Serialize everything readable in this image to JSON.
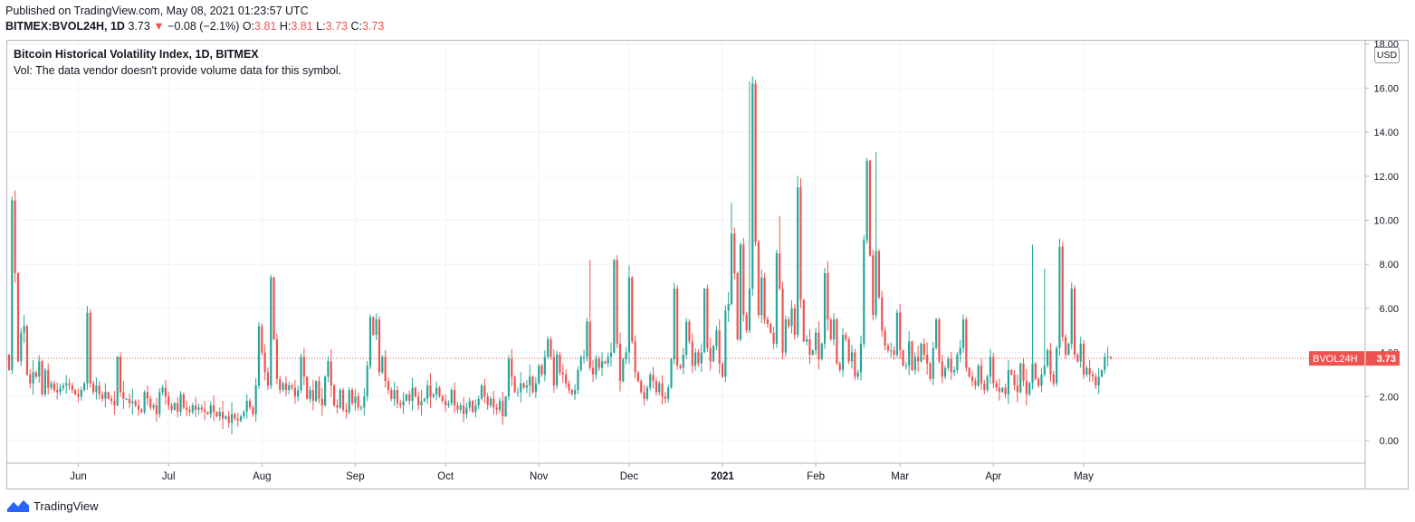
{
  "header": {
    "published": "Published on TradingView.com, May 08, 2021 01:23:57 UTC",
    "symbol": "BITMEX:BVOL24H, 1D",
    "last": "3.73",
    "change": "−0.08 (−2.1%)",
    "open_label": "O:",
    "open": "3.81",
    "high_label": "H:",
    "high": "3.81",
    "low_label": "L:",
    "low": "3.73",
    "close_label": "C:",
    "close": "3.73"
  },
  "legend": {
    "title": "Bitcoin Historical Volatility Index, 1D, BITMEX",
    "volume_note": "Vol: The data vendor doesn't provide volume data for this symbol."
  },
  "price_scale": {
    "currency": "USD",
    "price_tag_label": "BVOL24H",
    "price_tag_value": "3.73"
  },
  "brand": {
    "name": "TradingView"
  },
  "colors": {
    "up": "#26a69a",
    "down": "#ef5350",
    "text": "#131722",
    "grid": "#f0f3fa",
    "axis_border": "#b2b5be"
  },
  "chart_data": {
    "type": "candlestick",
    "title": "Bitcoin Historical Volatility Index, 1D, BITMEX",
    "ylim": [
      -1,
      18
    ],
    "y_ticks": [
      "0.00",
      "2.00",
      "4.00",
      "6.00",
      "8.00",
      "10.00",
      "12.00",
      "14.00",
      "16.00",
      "18.00"
    ],
    "x_ticks": [
      {
        "label": "Jun",
        "index": 23,
        "bold": false
      },
      {
        "label": "Jul",
        "index": 53,
        "bold": false
      },
      {
        "label": "Aug",
        "index": 84,
        "bold": false
      },
      {
        "label": "Sep",
        "index": 115,
        "bold": false
      },
      {
        "label": "Oct",
        "index": 145,
        "bold": false
      },
      {
        "label": "Nov",
        "index": 176,
        "bold": false
      },
      {
        "label": "Dec",
        "index": 206,
        "bold": false
      },
      {
        "label": "2021",
        "index": 237,
        "bold": true
      },
      {
        "label": "Feb",
        "index": 268,
        "bold": false
      },
      {
        "label": "Mar",
        "index": 296,
        "bold": false
      },
      {
        "label": "Apr",
        "index": 327,
        "bold": false
      },
      {
        "label": "May",
        "index": 357,
        "bold": false
      }
    ],
    "last_price": 3.73,
    "grid": true,
    "close_series": [
      3.2,
      10.9,
      7.6,
      3.6,
      4.9,
      5.2,
      3.0,
      2.6,
      3.1,
      2.9,
      3.6,
      2.1,
      3.2,
      2.4,
      2.6,
      2.3,
      2.2,
      2.4,
      2.5,
      2.6,
      2.5,
      2.3,
      2.1,
      2.0,
      2.3,
      2.6,
      5.8,
      2.6,
      2.2,
      2.5,
      2.1,
      1.9,
      2.2,
      1.9,
      1.8,
      1.6,
      3.8,
      2.2,
      1.9,
      1.9,
      1.7,
      1.8,
      1.6,
      1.4,
      1.3,
      2.2,
      1.9,
      1.5,
      1.6,
      1.2,
      2.2,
      2.4,
      2.0,
      1.6,
      1.4,
      1.7,
      1.3,
      2.1,
      1.5,
      1.4,
      1.3,
      1.6,
      1.4,
      1.5,
      1.4,
      1.3,
      1.2,
      1.6,
      1.3,
      1.1,
      1.3,
      1.0,
      1.1,
      0.8,
      1.2,
      1.0,
      0.9,
      1.1,
      1.3,
      1.8,
      1.5,
      1.2,
      2.5,
      5.2,
      4.0,
      3.1,
      2.5,
      7.4,
      4.6,
      2.8,
      2.3,
      2.6,
      2.3,
      2.5,
      2.4,
      2.0,
      2.3,
      3.8,
      2.9,
      1.9,
      2.3,
      1.8,
      2.7,
      1.9,
      1.6,
      2.9,
      3.6,
      2.5,
      1.6,
      1.5,
      2.3,
      1.4,
      1.3,
      2.3,
      1.7,
      2.0,
      1.5,
      1.5,
      2.0,
      3.4,
      5.6,
      4.8,
      5.5,
      3.1,
      3.8,
      2.7,
      2.3,
      1.9,
      2.3,
      1.7,
      1.6,
      1.8,
      2.1,
      1.8,
      2.4,
      2.0,
      1.6,
      1.8,
      1.9,
      2.5,
      2.0,
      2.1,
      2.4,
      2.0,
      1.8,
      1.6,
      1.7,
      2.3,
      1.6,
      1.4,
      1.6,
      1.2,
      1.5,
      1.8,
      1.3,
      1.6,
      1.9,
      2.5,
      2.0,
      1.6,
      1.9,
      1.5,
      1.4,
      1.8,
      1.1,
      2.0,
      3.7,
      2.9,
      2.2,
      2.2,
      2.6,
      2.4,
      2.5,
      2.9,
      2.2,
      2.6,
      3.4,
      3.0,
      3.8,
      4.6,
      3.8,
      2.5,
      3.9,
      3.1,
      3.0,
      2.6,
      2.3,
      2.1,
      2.3,
      3.2,
      3.8,
      3.8,
      5.4,
      3.3,
      3.0,
      3.7,
      3.3,
      3.6,
      3.5,
      3.8,
      4.0,
      8.2,
      4.4,
      2.7,
      3.7,
      4.0,
      7.4,
      4.5,
      3.1,
      2.7,
      2.2,
      1.9,
      2.4,
      3.0,
      2.7,
      2.2,
      2.6,
      2.0,
      1.9,
      2.4,
      3.7,
      6.9,
      3.4,
      3.3,
      3.9,
      5.4,
      4.5,
      3.4,
      4.0,
      3.5,
      4.0,
      6.9,
      4.2,
      3.6,
      4.3,
      5.0,
      3.5,
      2.9,
      5.9,
      6.2,
      9.4,
      7.6,
      4.6,
      8.9,
      5.7,
      5.0,
      6.9,
      16.2,
      9.0,
      5.7,
      7.4,
      5.5,
      5.3,
      4.9,
      4.4,
      8.5,
      6.9,
      4.0,
      5.5,
      5.2,
      6.0,
      4.8,
      11.5,
      6.4,
      4.5,
      4.6,
      3.9,
      4.1,
      4.9,
      3.7,
      4.4,
      7.6,
      5.5,
      4.6,
      5.5,
      3.5,
      3.2,
      4.8,
      4.6,
      3.6,
      4.0,
      2.9,
      3.1,
      4.4,
      9.1,
      12.7,
      8.4,
      5.7,
      8.6,
      6.5,
      5.0,
      4.3,
      4.1,
      4.1,
      3.9,
      5.8,
      4.1,
      3.4,
      3.4,
      4.5,
      3.2,
      3.8,
      3.6,
      4.4,
      3.9,
      3.5,
      2.8,
      4.2,
      5.5,
      3.6,
      2.9,
      3.3,
      3.7,
      3.1,
      3.2,
      3.9,
      4.2,
      5.5,
      3.3,
      2.9,
      2.7,
      2.5,
      3.4,
      2.6,
      2.3,
      2.9,
      3.8,
      2.6,
      2.4,
      2.2,
      2.4,
      2.1,
      3.2,
      3.0,
      2.5,
      2.2,
      3.5,
      2.7,
      2.1,
      2.6,
      3.5,
      2.8,
      2.5,
      3.0,
      3.4,
      4.1,
      3.0,
      2.6,
      4.2,
      8.8,
      4.7,
      3.9,
      4.4,
      6.9,
      3.9,
      3.6,
      4.4,
      3.0,
      3.3,
      3.0,
      2.9,
      2.5,
      2.9,
      3.2,
      3.8,
      3.8,
      3.73
    ],
    "extreme_highs": [
      {
        "index": 1,
        "high": 10.9
      },
      {
        "index": 87,
        "high": 7.4
      },
      {
        "index": 193,
        "high": 8.2
      },
      {
        "index": 240,
        "high": 10.8
      },
      {
        "index": 246,
        "high": 16.3
      },
      {
        "index": 256,
        "high": 10.2
      },
      {
        "index": 262,
        "high": 12.0
      },
      {
        "index": 288,
        "high": 13.1
      },
      {
        "index": 340,
        "high": 8.9
      },
      {
        "index": 344,
        "high": 7.8
      }
    ]
  }
}
